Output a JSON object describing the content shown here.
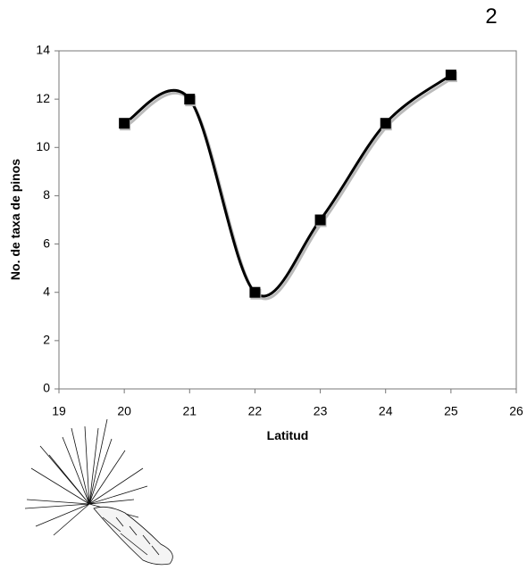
{
  "page_number": "2",
  "chart_data": {
    "type": "line",
    "x_label": "Latitud",
    "y_label": "No. de taxa de pinos",
    "x": [
      20,
      21,
      22,
      23,
      24,
      25
    ],
    "values": [
      11,
      12,
      4,
      7,
      11,
      13
    ],
    "color": "#000000",
    "xlim": [
      19,
      26
    ],
    "xticks": [
      19,
      20,
      21,
      22,
      23,
      24,
      25,
      26
    ],
    "ylim": [
      0,
      14
    ],
    "yticks": [
      0,
      2,
      4,
      6,
      8,
      10,
      12,
      14
    ],
    "smooth": true,
    "markers": "square"
  }
}
